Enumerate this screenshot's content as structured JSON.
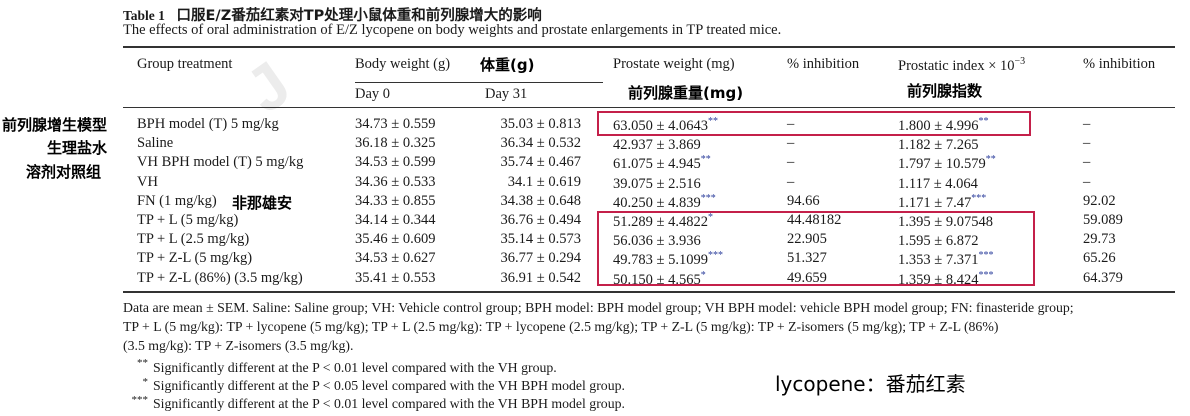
{
  "caption": {
    "label": "Table 1",
    "title_zh": "口服E/Z番茄红素对TP处理小鼠体重和前列腺增大的影响",
    "subtitle": "The effects of oral administration of E/Z lycopene on body weights and prostate enlargements in TP treated mice."
  },
  "headers": {
    "group": "Group treatment",
    "body_weight": "Body weight (g)",
    "day0": "Day 0",
    "day31": "Day 31",
    "prostate_weight": "Prostate weight (mg)",
    "inhibition1": "% inhibition",
    "prostatic_index": "Prostatic index × 10",
    "prostatic_index_exp": "−3",
    "inhibition2": "% inhibition"
  },
  "annotations": {
    "body_weight_zh": "体重(g)",
    "prostate_weight_zh": "前列腺重量(mg)",
    "prostatic_index_zh": "前列腺指数",
    "bph_model_zh": "前列腺增生模型",
    "saline_zh": "生理盐水",
    "vh_zh": "溶剂对照组",
    "fn_zh": "非那雄安",
    "lycopene_note": "lycopene：番茄红素"
  },
  "rows": [
    {
      "group": "BPH model (T) 5 mg/kg",
      "day0": "34.73 ± 0.559",
      "day31": "35.03 ± 0.813",
      "pw": "63.050 ± 4.0643",
      "pw_sig": "**",
      "inh1": "–",
      "pi": "1.800 ± 4.996",
      "pi_sig": "**",
      "inh2": "–"
    },
    {
      "group": "Saline",
      "day0": "36.18 ± 0.325",
      "day31": "36.34 ± 0.532",
      "pw": "42.937 ± 3.869",
      "pw_sig": "",
      "inh1": "–",
      "pi": "1.182 ± 7.265",
      "pi_sig": "",
      "inh2": "–"
    },
    {
      "group": "VH BPH model (T) 5 mg/kg",
      "day0": "34.53 ± 0.599",
      "day31": "35.74 ± 0.467",
      "pw": "61.075 ± 4.945",
      "pw_sig": "**",
      "inh1": "–",
      "pi": "1.797 ± 10.579",
      "pi_sig": "**",
      "inh2": "–"
    },
    {
      "group": "VH",
      "day0": "34.36 ± 0.533",
      "day31": "34.1 ± 0.619",
      "pw": "39.075 ± 2.516",
      "pw_sig": "",
      "inh1": "–",
      "pi": "1.117 ± 4.064",
      "pi_sig": "",
      "inh2": "–"
    },
    {
      "group": "FN (1 mg/kg)",
      "day0": "34.33 ± 0.855",
      "day31": "34.38 ± 0.648",
      "pw": "40.250 ± 4.839",
      "pw_sig": "***",
      "inh1": "94.66",
      "pi": "1.171 ± 7.47",
      "pi_sig": "***",
      "inh2": "92.02"
    },
    {
      "group": "TP + L (5 mg/kg)",
      "day0": "34.14 ± 0.344",
      "day31": "36.76 ± 0.494",
      "pw": "51.289 ± 4.4822",
      "pw_sig": "*",
      "inh1": "44.48182",
      "pi": "1.395 ± 9.07548",
      "pi_sig": "",
      "inh2": "59.089"
    },
    {
      "group": "TP + L (2.5 mg/kg)",
      "day0": "35.46 ± 0.609",
      "day31": "35.14 ± 0.573",
      "pw": "56.036 ± 3.936",
      "pw_sig": "",
      "inh1": "22.905",
      "pi": "1.595 ± 6.872",
      "pi_sig": "",
      "inh2": "29.73"
    },
    {
      "group": "TP + Z-L (5 mg/kg)",
      "day0": "34.53 ± 0.627",
      "day31": "36.77 ± 0.294",
      "pw": "49.783 ± 5.1099",
      "pw_sig": "***",
      "inh1": "51.327",
      "pi": "1.353 ± 7.371",
      "pi_sig": "***",
      "inh2": "65.26"
    },
    {
      "group": "TP + Z-L (86%) (3.5 mg/kg)",
      "day0": "35.41 ± 0.553",
      "day31": "36.91 ± 0.542",
      "pw": "50.150 ± 4.565",
      "pw_sig": "*",
      "inh1": "49.659",
      "pi": "1.359 ± 8.424",
      "pi_sig": "***",
      "inh2": "64.379"
    }
  ],
  "notes": {
    "line1": "Data are mean ± SEM. Saline: Saline group; VH: Vehicle control group; BPH model: BPH model group; VH BPH model: vehicle BPH model group; FN: finasteride group;",
    "line2": "TP + L (5 mg/kg): TP + lycopene (5 mg/kg); TP + L (2.5 mg/kg): TP + lycopene (2.5 mg/kg); TP + Z-L (5 mg/kg): TP + Z-isomers (5 mg/kg); TP + Z-L (86%)",
    "line3": "(3.5 mg/kg): TP + Z-isomers (3.5 mg/kg).",
    "sig1_mark": "**",
    "sig1": "Significantly different at the P < 0.01 level compared with the VH group.",
    "sig2_mark": "*",
    "sig2": "Significantly different at the P < 0.05 level compared with the VH BPH model group.",
    "sig3_mark": "***",
    "sig3": "Significantly different at the P < 0.01 level compared with the VH BPH model group."
  },
  "colors": {
    "highlight_box": "#c4204a",
    "significance_marks": "#2c3e9c"
  }
}
